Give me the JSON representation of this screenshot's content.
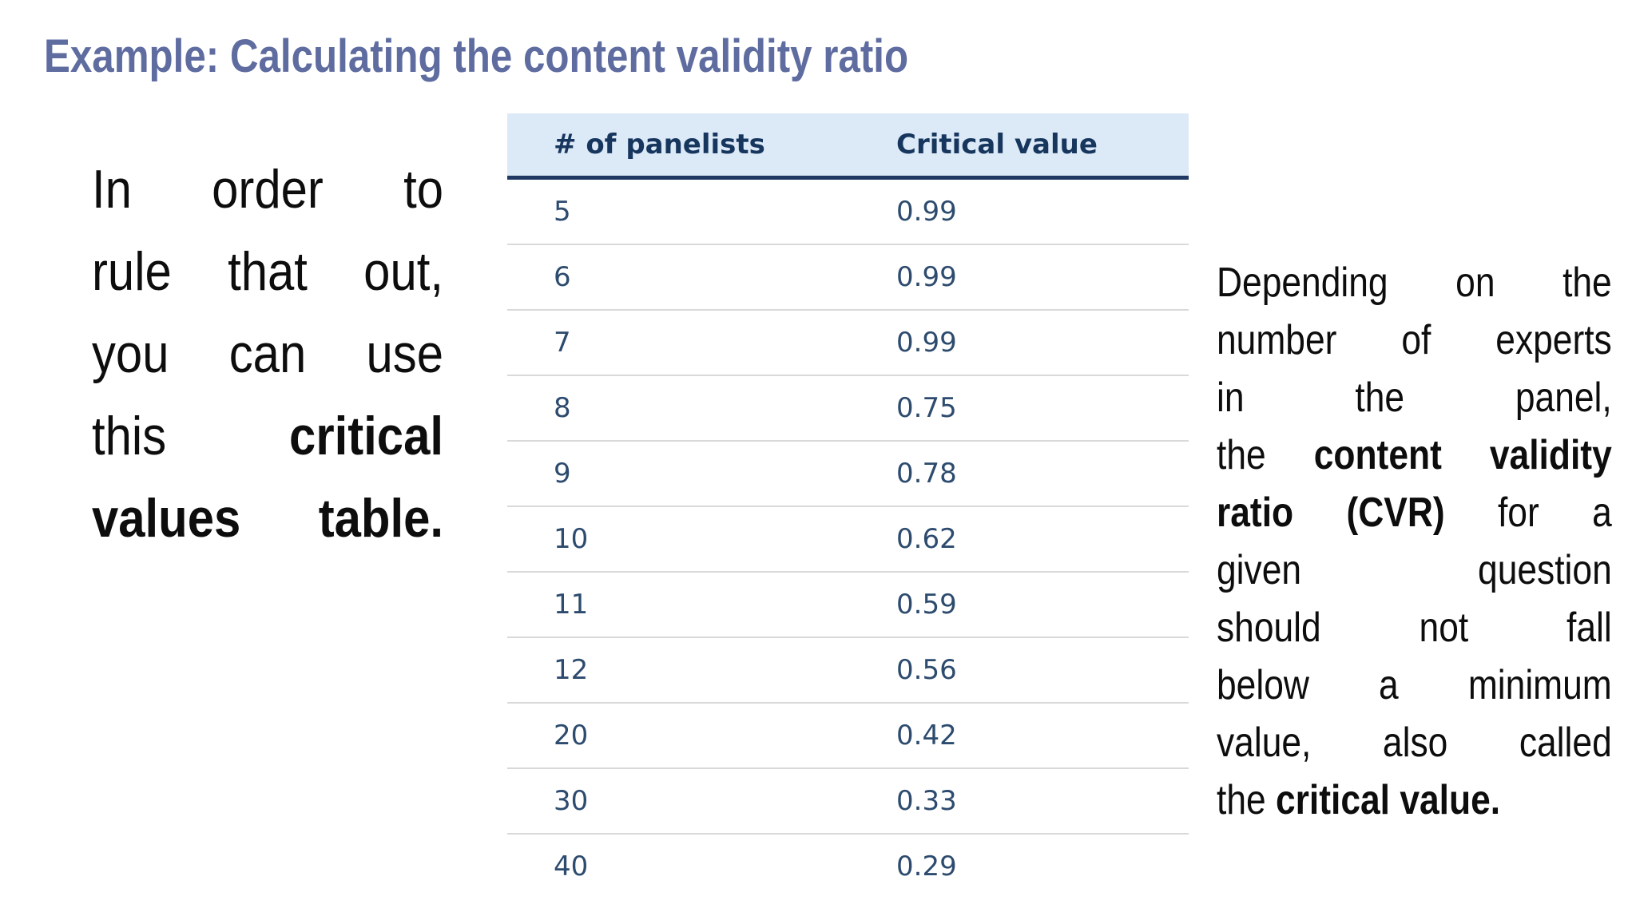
{
  "slide": {
    "title": "Example: Calculating the content validity ratio"
  },
  "left_paragraph": {
    "lines": [
      [
        "In order to"
      ],
      [
        "rule that out,"
      ],
      [
        "you can use"
      ],
      [
        "this ",
        "critical"
      ],
      [
        "values table."
      ]
    ]
  },
  "table": {
    "columns": [
      "# of panelists",
      "Critical value"
    ],
    "rows": [
      [
        "5",
        "0.99"
      ],
      [
        "6",
        "0.99"
      ],
      [
        "7",
        "0.99"
      ],
      [
        "8",
        "0.75"
      ],
      [
        "9",
        "0.78"
      ],
      [
        "10",
        "0.62"
      ],
      [
        "11",
        "0.59"
      ],
      [
        "12",
        "0.56"
      ],
      [
        "20",
        "0.42"
      ],
      [
        "30",
        "0.33"
      ],
      [
        "40",
        "0.29"
      ]
    ]
  },
  "right_paragraph": {
    "lines": [
      [
        "Depending on the"
      ],
      [
        "number of experts"
      ],
      [
        "in the panel,"
      ],
      [
        "the ",
        "content validity"
      ],
      [
        "ratio (CVR)",
        " for a"
      ],
      [
        "given question"
      ],
      [
        "should not fall"
      ],
      [
        "below a minimum"
      ],
      [
        "value, also called"
      ],
      [
        "the ",
        "critical value."
      ]
    ]
  },
  "colors": {
    "title": "#5f6ca0",
    "body_text": "#0d0d0d",
    "table_header_bg": "#dce9f7",
    "table_header_text": "#17365d",
    "table_header_underline": "#1f3864",
    "table_row_text": "#2d4b6e",
    "table_row_separator": "#d9d9d9",
    "background": "#ffffff"
  }
}
